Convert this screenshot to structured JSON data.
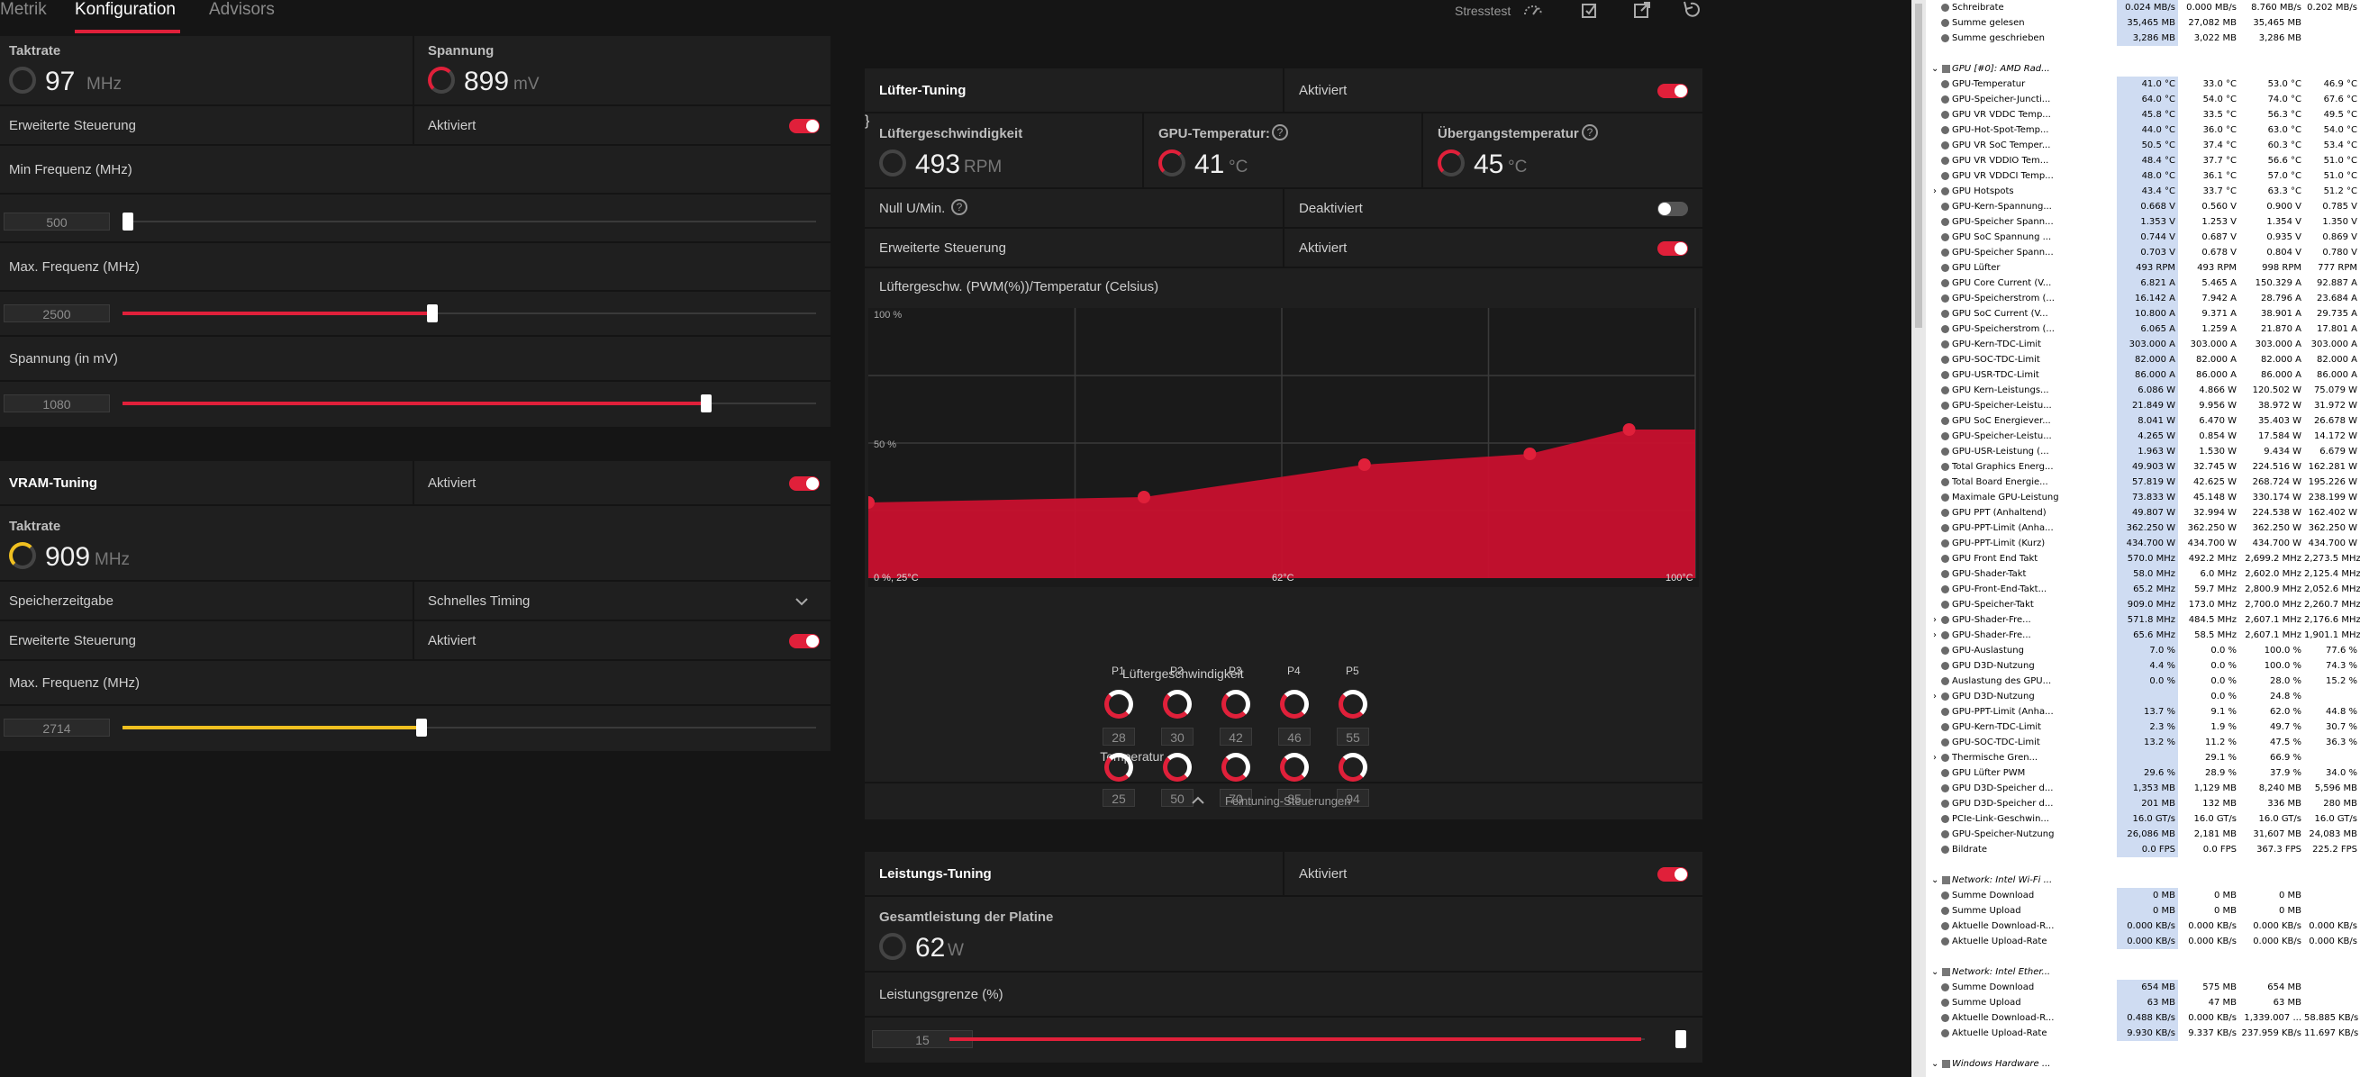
{
  "tabs": [
    "Metrik",
    "Konfiguration",
    "Advisors"
  ],
  "toolbar": {
    "stresstest": "Stresstest"
  },
  "gpu": {
    "taktrate_label": "Taktrate",
    "taktrate_value": "97",
    "taktrate_unit": "MHz",
    "spannung_label": "Spannung",
    "spannung_value": "899",
    "spannung_unit": "mV",
    "ext_ctrl_label": "Erweiterte Steuerung",
    "ext_ctrl_state": "Aktiviert",
    "min_freq_label": "Min Frequenz (MHz)",
    "min_freq_value": "500",
    "min_freq_fraction": 0.0,
    "max_freq_label": "Max. Frequenz (MHz)",
    "max_freq_value": "2500",
    "max_freq_fraction": 0.445,
    "voltage_label": "Spannung (in mV)",
    "voltage_value": "1080",
    "voltage_fraction": 0.84
  },
  "vram": {
    "title": "VRAM-Tuning",
    "state": "Aktiviert",
    "taktrate_label": "Taktrate",
    "taktrate_value": "909",
    "taktrate_unit": "MHz",
    "timing_label": "Speicherzeitgabe",
    "timing_value": "Schnelles Timing",
    "ext_ctrl_label": "Erweiterte Steuerung",
    "ext_ctrl_state": "Aktiviert",
    "max_freq_label": "Max. Frequenz (MHz)",
    "max_freq_value": "2714",
    "max_freq_fraction": 0.43
  },
  "fan": {
    "title": "Lüfter-Tuning",
    "state": "Aktiviert",
    "speed_label": "Lüftergeschwindigkeit",
    "speed_value": "493",
    "speed_unit": "RPM",
    "gpu_temp_label": "GPU-Temperatur:",
    "gpu_temp_value": "41",
    "gpu_temp_unit": "°C",
    "junction_label": "Übergangstemperatur",
    "junction_value": "45",
    "junction_unit": "°C",
    "zero_rpm_label": "Null U/Min.",
    "zero_rpm_state": "Deaktiviert",
    "ext_ctrl_label": "Erweiterte Steuerung",
    "ext_ctrl_state": "Aktiviert",
    "curve_title": "Lüftergeschw. (PWM(%))/Temperatur (Celsius)",
    "axis_top": "100 %",
    "axis_mid": "50 %",
    "axis_origin": "0 %, 25°C",
    "axis_mid_x": "62°C",
    "axis_end_x": "100°C",
    "point_labels": [
      "P1",
      "P2",
      "P3",
      "P4",
      "P5"
    ],
    "speed_row_label": "Lüftergeschwindigkeit",
    "speeds": [
      "28",
      "30",
      "42",
      "46",
      "55"
    ],
    "temp_row_label": "Temperatur",
    "temps": [
      "25",
      "50",
      "70",
      "85",
      "94"
    ],
    "fine_tuning": "Feintuning-Steuerungen"
  },
  "chart_data": {
    "type": "area",
    "title": "Lüftergeschw. (PWM(%))/Temperatur (Celsius)",
    "x": [
      25,
      50,
      70,
      85,
      94
    ],
    "values": [
      28,
      30,
      42,
      46,
      55
    ],
    "xlim": [
      25,
      100
    ],
    "ylim": [
      0,
      100
    ],
    "xlabel": "",
    "ylabel": ""
  },
  "power": {
    "title": "Leistungs-Tuning",
    "state": "Aktiviert",
    "board_label": "Gesamtleistung der Platine",
    "board_value": "62",
    "board_unit": "W",
    "limit_label": "Leistungsgrenze (%)",
    "limit_value": "15",
    "limit_fraction": 1.0
  },
  "hwinfo": {
    "rows": [
      {
        "t": "i",
        "n": "Schreibrate",
        "v": [
          "0.024 MB/s",
          "0.000 MB/s",
          "8.760 MB/s",
          "0.202 MB/s"
        ]
      },
      {
        "t": "i",
        "n": "Summe gelesen",
        "v": [
          "35,465 MB",
          "27,082 MB",
          "35,465 MB",
          ""
        ]
      },
      {
        "t": "i",
        "n": "Summe geschrieben",
        "v": [
          "3,286 MB",
          "3,022 MB",
          "3,286 MB",
          ""
        ]
      },
      {
        "t": "b",
        "n": ""
      },
      {
        "t": "g",
        "n": "GPU [#0]: AMD Rad..."
      },
      {
        "t": "i",
        "n": "GPU-Temperatur",
        "v": [
          "41.0 °C",
          "33.0 °C",
          "53.0 °C",
          "46.9 °C"
        ]
      },
      {
        "t": "i",
        "n": "GPU-Speicher-Juncti...",
        "v": [
          "64.0 °C",
          "54.0 °C",
          "74.0 °C",
          "67.6 °C"
        ]
      },
      {
        "t": "i",
        "n": "GPU VR VDDC Temp...",
        "v": [
          "45.8 °C",
          "33.5 °C",
          "56.3 °C",
          "49.5 °C"
        ]
      },
      {
        "t": "i",
        "n": "GPU-Hot-Spot-Temp...",
        "v": [
          "44.0 °C",
          "36.0 °C",
          "63.0 °C",
          "54.0 °C"
        ]
      },
      {
        "t": "i",
        "n": "GPU VR SoC Temper...",
        "v": [
          "50.5 °C",
          "37.4 °C",
          "60.3 °C",
          "53.4 °C"
        ]
      },
      {
        "t": "i",
        "n": "GPU VR VDDIO Tem...",
        "v": [
          "48.4 °C",
          "37.7 °C",
          "56.6 °C",
          "51.0 °C"
        ]
      },
      {
        "t": "i",
        "n": "GPU VR VDDCI Temp...",
        "v": [
          "48.0 °C",
          "36.1 °C",
          "57.0 °C",
          "51.0 °C"
        ]
      },
      {
        "t": "e",
        "n": "GPU Hotspots",
        "v": [
          "43.4 °C",
          "33.7 °C",
          "63.3 °C",
          "51.2 °C"
        ]
      },
      {
        "t": "i",
        "n": "GPU-Kern-Spannung...",
        "v": [
          "0.668 V",
          "0.560 V",
          "0.900 V",
          "0.785 V"
        ]
      },
      {
        "t": "i",
        "n": "GPU-Speicher Spann...",
        "v": [
          "1.353 V",
          "1.253 V",
          "1.354 V",
          "1.350 V"
        ]
      },
      {
        "t": "i",
        "n": "GPU SoC Spannung ...",
        "v": [
          "0.744 V",
          "0.687 V",
          "0.935 V",
          "0.869 V"
        ]
      },
      {
        "t": "i",
        "n": "GPU-Speicher Spann...",
        "v": [
          "0.703 V",
          "0.678 V",
          "0.804 V",
          "0.780 V"
        ]
      },
      {
        "t": "i",
        "n": "GPU Lüfter",
        "v": [
          "493 RPM",
          "493 RPM",
          "998 RPM",
          "777 RPM"
        ]
      },
      {
        "t": "i",
        "n": "GPU Core Current (V...",
        "v": [
          "6.821 A",
          "5.465 A",
          "150.329 A",
          "92.887 A"
        ]
      },
      {
        "t": "i",
        "n": "GPU-Speicherstrom (...",
        "v": [
          "16.142 A",
          "7.942 A",
          "28.796 A",
          "23.684 A"
        ]
      },
      {
        "t": "i",
        "n": "GPU SoC Current (V...",
        "v": [
          "10.800 A",
          "9.371 A",
          "38.901 A",
          "29.735 A"
        ]
      },
      {
        "t": "i",
        "n": "GPU-Speicherstrom (...",
        "v": [
          "6.065 A",
          "1.259 A",
          "21.870 A",
          "17.801 A"
        ]
      },
      {
        "t": "i",
        "n": "GPU-Kern-TDC-Limit",
        "v": [
          "303.000 A",
          "303.000 A",
          "303.000 A",
          "303.000 A"
        ]
      },
      {
        "t": "i",
        "n": "GPU-SOC-TDC-Limit",
        "v": [
          "82.000 A",
          "82.000 A",
          "82.000 A",
          "82.000 A"
        ]
      },
      {
        "t": "i",
        "n": "GPU-USR-TDC-Limit",
        "v": [
          "86.000 A",
          "86.000 A",
          "86.000 A",
          "86.000 A"
        ]
      },
      {
        "t": "i",
        "n": "GPU Kern-Leistungs...",
        "v": [
          "6.086 W",
          "4.866 W",
          "120.502 W",
          "75.079 W"
        ]
      },
      {
        "t": "i",
        "n": "GPU-Speicher-Leistu...",
        "v": [
          "21.849 W",
          "9.956 W",
          "38.972 W",
          "31.972 W"
        ]
      },
      {
        "t": "i",
        "n": "GPU SoC Energiever...",
        "v": [
          "8.041 W",
          "6.470 W",
          "35.403 W",
          "26.678 W"
        ]
      },
      {
        "t": "i",
        "n": "GPU-Speicher-Leistu...",
        "v": [
          "4.265 W",
          "0.854 W",
          "17.584 W",
          "14.172 W"
        ]
      },
      {
        "t": "i",
        "n": "GPU-USR-Leistung (...",
        "v": [
          "1.963 W",
          "1.530 W",
          "9.434 W",
          "6.679 W"
        ]
      },
      {
        "t": "i",
        "n": "Total Graphics Energ...",
        "v": [
          "49.903 W",
          "32.745 W",
          "224.516 W",
          "162.281 W"
        ]
      },
      {
        "t": "i",
        "n": "Total Board Energie...",
        "v": [
          "57.819 W",
          "42.625 W",
          "268.724 W",
          "195.226 W"
        ]
      },
      {
        "t": "i",
        "n": "Maximale GPU-Leistung",
        "v": [
          "73.833 W",
          "45.148 W",
          "330.174 W",
          "238.199 W"
        ]
      },
      {
        "t": "i",
        "n": "GPU PPT (Anhaltend)",
        "v": [
          "49.807 W",
          "32.994 W",
          "224.538 W",
          "162.402 W"
        ]
      },
      {
        "t": "i",
        "n": "GPU-PPT-Limit (Anha...",
        "v": [
          "362.250 W",
          "362.250 W",
          "362.250 W",
          "362.250 W"
        ]
      },
      {
        "t": "i",
        "n": "GPU-PPT-Limit (Kurz)",
        "v": [
          "434.700 W",
          "434.700 W",
          "434.700 W",
          "434.700 W"
        ]
      },
      {
        "t": "i",
        "n": "GPU Front End Takt",
        "v": [
          "570.0 MHz",
          "492.2 MHz",
          "2,699.2 MHz",
          "2,273.5 MHz"
        ]
      },
      {
        "t": "i",
        "n": "GPU-Shader-Takt",
        "v": [
          "58.0 MHz",
          "6.0 MHz",
          "2,602.0 MHz",
          "2,125.4 MHz"
        ]
      },
      {
        "t": "i",
        "n": "GPU-Front-End-Takt...",
        "v": [
          "65.2 MHz",
          "59.7 MHz",
          "2,800.9 MHz",
          "2,052.6 MHz"
        ]
      },
      {
        "t": "i",
        "n": "GPU-Speicher-Takt",
        "v": [
          "909.0 MHz",
          "173.0 MHz",
          "2,700.0 MHz",
          "2,260.7 MHz"
        ]
      },
      {
        "t": "e",
        "n": "GPU-Shader-Fre...",
        "v": [
          "571.8 MHz",
          "484.5 MHz",
          "2,607.1 MHz",
          "2,176.6 MHz"
        ]
      },
      {
        "t": "e",
        "n": "GPU-Shader-Fre...",
        "v": [
          "65.6 MHz",
          "58.5 MHz",
          "2,607.1 MHz",
          "1,901.1 MHz"
        ]
      },
      {
        "t": "i",
        "n": "GPU-Auslastung",
        "v": [
          "7.0 %",
          "0.0 %",
          "100.0 %",
          "77.6 %"
        ]
      },
      {
        "t": "i",
        "n": "GPU D3D-Nutzung",
        "v": [
          "4.4 %",
          "0.0 %",
          "100.0 %",
          "74.3 %"
        ]
      },
      {
        "t": "i",
        "n": "Auslastung des GPU...",
        "v": [
          "0.0 %",
          "0.0 %",
          "28.0 %",
          "15.2 %"
        ]
      },
      {
        "t": "e",
        "n": "GPU D3D-Nutzung",
        "v": [
          "",
          "0.0 %",
          "24.8 %",
          ""
        ]
      },
      {
        "t": "i",
        "n": "GPU-PPT-Limit (Anha...",
        "v": [
          "13.7 %",
          "9.1 %",
          "62.0 %",
          "44.8 %"
        ]
      },
      {
        "t": "i",
        "n": "GPU-Kern-TDC-Limit",
        "v": [
          "2.3 %",
          "1.9 %",
          "49.7 %",
          "30.7 %"
        ]
      },
      {
        "t": "i",
        "n": "GPU-SOC-TDC-Limit",
        "v": [
          "13.2 %",
          "11.2 %",
          "47.5 %",
          "36.3 %"
        ]
      },
      {
        "t": "e",
        "n": "Thermische Gren...",
        "v": [
          "",
          "29.1 %",
          "66.9 %",
          ""
        ]
      },
      {
        "t": "i",
        "n": "GPU Lüfter PWM",
        "v": [
          "29.6 %",
          "28.9 %",
          "37.9 %",
          "34.0 %"
        ]
      },
      {
        "t": "i",
        "n": "GPU D3D-Speicher d...",
        "v": [
          "1,353 MB",
          "1,129 MB",
          "8,240 MB",
          "5,596 MB"
        ]
      },
      {
        "t": "i",
        "n": "GPU D3D-Speicher d...",
        "v": [
          "201 MB",
          "132 MB",
          "336 MB",
          "280 MB"
        ]
      },
      {
        "t": "i",
        "n": "PCIe-Link-Geschwin...",
        "v": [
          "16.0 GT/s",
          "16.0 GT/s",
          "16.0 GT/s",
          "16.0 GT/s"
        ]
      },
      {
        "t": "i",
        "n": "GPU-Speicher-Nutzung",
        "v": [
          "26,086 MB",
          "2,181 MB",
          "31,607 MB",
          "24,083 MB"
        ]
      },
      {
        "t": "i",
        "n": "Bildrate",
        "v": [
          "0.0 FPS",
          "0.0 FPS",
          "367.3 FPS",
          "225.2 FPS"
        ]
      },
      {
        "t": "b",
        "n": ""
      },
      {
        "t": "g",
        "n": "Network: Intel Wi-Fi ..."
      },
      {
        "t": "i",
        "n": "Summe Download",
        "v": [
          "0 MB",
          "0 MB",
          "0 MB",
          ""
        ]
      },
      {
        "t": "i",
        "n": "Summe Upload",
        "v": [
          "0 MB",
          "0 MB",
          "0 MB",
          ""
        ]
      },
      {
        "t": "i",
        "n": "Aktuelle Download-R...",
        "v": [
          "0.000 KB/s",
          "0.000 KB/s",
          "0.000 KB/s",
          "0.000 KB/s"
        ]
      },
      {
        "t": "i",
        "n": "Aktuelle Upload-Rate",
        "v": [
          "0.000 KB/s",
          "0.000 KB/s",
          "0.000 KB/s",
          "0.000 KB/s"
        ]
      },
      {
        "t": "b",
        "n": ""
      },
      {
        "t": "g",
        "n": "Network: Intel Ether..."
      },
      {
        "t": "i",
        "n": "Summe Download",
        "v": [
          "654 MB",
          "575 MB",
          "654 MB",
          ""
        ]
      },
      {
        "t": "i",
        "n": "Summe Upload",
        "v": [
          "63 MB",
          "47 MB",
          "63 MB",
          ""
        ]
      },
      {
        "t": "i",
        "n": "Aktuelle Download-R...",
        "v": [
          "0.488 KB/s",
          "0.000 KB/s",
          "1,339.007 ...",
          "58.885 KB/s"
        ]
      },
      {
        "t": "i",
        "n": "Aktuelle Upload-Rate",
        "v": [
          "9.930 KB/s",
          "9.337 KB/s",
          "237.959 KB/s",
          "11.697 KB/s"
        ]
      },
      {
        "t": "b",
        "n": ""
      },
      {
        "t": "g",
        "n": "Windows Hardware ..."
      }
    ]
  }
}
